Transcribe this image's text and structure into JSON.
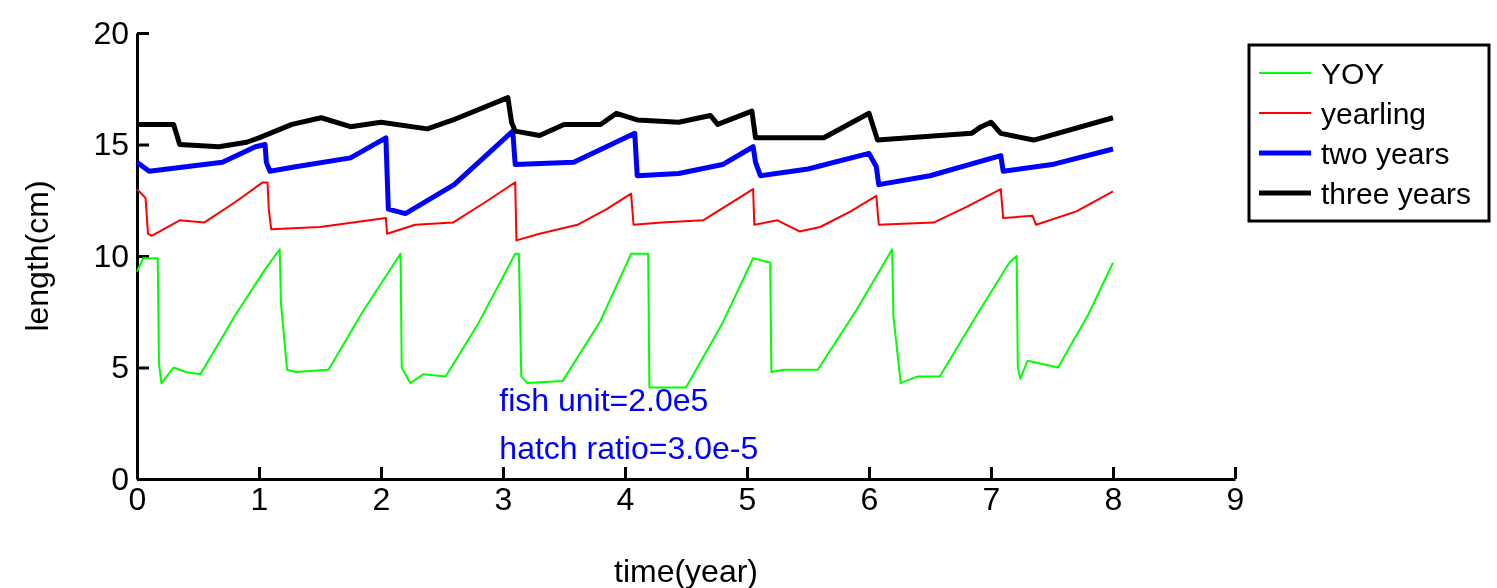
{
  "chart_data": {
    "type": "line",
    "xlabel": "time(year)",
    "ylabel": "length(cm)",
    "xlim": [
      0,
      9
    ],
    "xticks": [
      0,
      1,
      2,
      3,
      4,
      5,
      6,
      7,
      8,
      9
    ],
    "ylim": [
      0,
      20
    ],
    "yticks": [
      0,
      5,
      10,
      15,
      20
    ],
    "legend": "right",
    "line_style": "solid",
    "annotations": [
      "fish unit=2.0e5",
      "hatch ratio=3.0e-5"
    ],
    "series": [
      {
        "name": "YOY",
        "color": "#00ff00",
        "x": [
          0,
          0.05,
          0.17,
          0.18,
          0.2,
          0.3,
          0.4,
          0.52,
          0.8,
          1.05,
          1.17,
          1.18,
          1.23,
          1.3,
          1.57,
          1.85,
          2.16,
          2.17,
          2.24,
          2.35,
          2.53,
          2.8,
          3.1,
          3.13,
          3.15,
          3.2,
          3.49,
          3.8,
          4.05,
          4.19,
          4.2,
          4.5,
          4.8,
          5.05,
          5.19,
          5.2,
          5.3,
          5.58,
          5.9,
          6.19,
          6.2,
          6.26,
          6.4,
          6.58,
          6.9,
          7.15,
          7.21,
          7.22,
          7.24,
          7.3,
          7.55,
          7.8,
          8.0
        ],
        "values": [
          9.3,
          9.9,
          9.9,
          5.2,
          4.3,
          5.0,
          4.8,
          4.7,
          7.3,
          9.4,
          10.3,
          7.9,
          4.9,
          4.8,
          4.9,
          7.5,
          10.1,
          5.0,
          4.3,
          4.7,
          4.6,
          7.0,
          10.1,
          10.1,
          4.6,
          4.3,
          4.4,
          7.1,
          10.1,
          10.1,
          4.1,
          4.1,
          7.0,
          9.9,
          9.7,
          4.8,
          4.9,
          4.9,
          7.6,
          10.3,
          7.3,
          4.3,
          4.6,
          4.6,
          7.5,
          9.7,
          10.0,
          5.0,
          4.5,
          5.3,
          5.0,
          7.4,
          9.7
        ]
      },
      {
        "name": "yearling",
        "color": "#ff0000",
        "x": [
          0,
          0.07,
          0.09,
          0.12,
          0.35,
          0.55,
          0.8,
          1.03,
          1.07,
          1.08,
          1.1,
          1.5,
          2.04,
          2.05,
          2.28,
          2.59,
          2.85,
          3.1,
          3.11,
          3.3,
          3.61,
          3.85,
          4.05,
          4.07,
          4.3,
          4.64,
          5.05,
          5.06,
          5.25,
          5.43,
          5.6,
          5.85,
          6.06,
          6.08,
          6.53,
          6.8,
          7.08,
          7.1,
          7.34,
          7.37,
          7.7,
          8.0
        ],
        "values": [
          13.0,
          12.6,
          11.0,
          10.9,
          11.6,
          11.5,
          12.4,
          13.3,
          13.3,
          12.1,
          11.2,
          11.3,
          11.7,
          11.0,
          11.4,
          11.5,
          12.4,
          13.3,
          10.7,
          11.0,
          11.4,
          12.1,
          12.8,
          11.4,
          11.5,
          11.6,
          13.0,
          11.4,
          11.6,
          11.1,
          11.3,
          12.0,
          12.7,
          11.4,
          11.5,
          12.2,
          13.0,
          11.7,
          11.8,
          11.4,
          12.0,
          12.9
        ]
      },
      {
        "name": "two years",
        "color": "#0000ff",
        "x": [
          0,
          0.1,
          0.4,
          0.7,
          0.97,
          1.05,
          1.06,
          1.09,
          1.3,
          1.75,
          2.04,
          2.06,
          2.2,
          2.6,
          3.08,
          3.1,
          3.58,
          4.08,
          4.1,
          4.44,
          4.8,
          5.05,
          5.07,
          5.11,
          5.5,
          6.0,
          6.06,
          6.08,
          6.5,
          7.08,
          7.1,
          7.5,
          8.0
        ],
        "values": [
          14.2,
          13.8,
          14.0,
          14.2,
          14.9,
          15.0,
          14.2,
          13.8,
          14.0,
          14.4,
          15.3,
          12.1,
          11.9,
          13.2,
          15.6,
          14.1,
          14.2,
          15.5,
          13.6,
          13.7,
          14.1,
          14.9,
          14.2,
          13.6,
          13.9,
          14.6,
          14.0,
          13.2,
          13.6,
          14.5,
          13.8,
          14.1,
          14.8
        ]
      },
      {
        "name": "three years",
        "color": "#000000",
        "x": [
          0,
          0.3,
          0.35,
          0.67,
          0.9,
          1.0,
          1.27,
          1.51,
          1.75,
          2.0,
          2.38,
          2.59,
          3.04,
          3.07,
          3.1,
          3.3,
          3.5,
          3.8,
          3.93,
          4.1,
          4.44,
          4.7,
          4.76,
          5.04,
          5.07,
          5.63,
          6.0,
          6.07,
          6.84,
          6.92,
          7.0,
          7.08,
          7.35,
          8.0
        ],
        "values": [
          15.9,
          15.9,
          15.0,
          14.9,
          15.1,
          15.3,
          15.9,
          16.2,
          15.8,
          16.0,
          15.7,
          16.1,
          17.1,
          16.0,
          15.6,
          15.4,
          15.9,
          15.9,
          16.4,
          16.1,
          16.0,
          16.3,
          15.9,
          16.5,
          15.3,
          15.3,
          16.4,
          15.2,
          15.5,
          15.8,
          16.0,
          15.5,
          15.2,
          16.2
        ]
      }
    ]
  }
}
